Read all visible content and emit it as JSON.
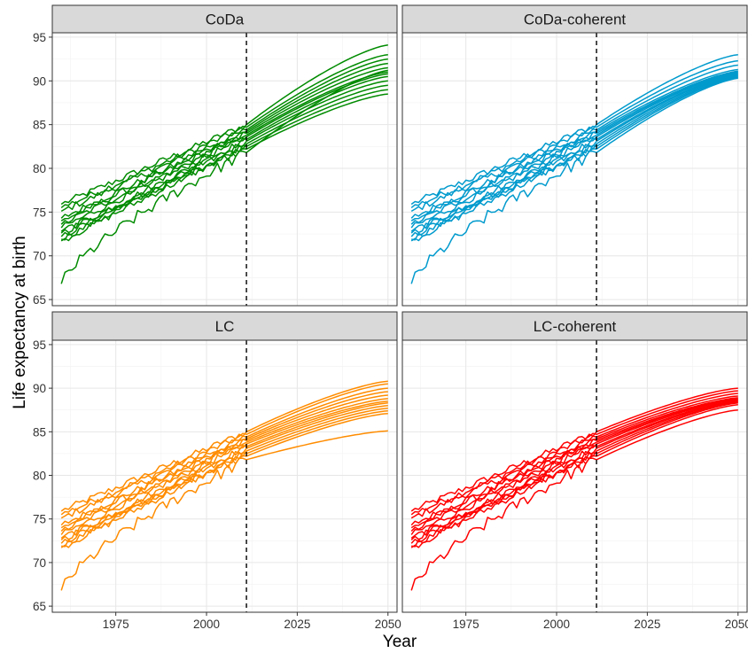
{
  "chart_data": {
    "type": "line",
    "xlabel": "Year",
    "ylabel": "Life expectancy at birth",
    "xlim": [
      1957.5,
      2052.5
    ],
    "ylim": [
      64.3,
      95.5
    ],
    "x_ticks": [
      1975,
      2000,
      2025,
      2050
    ],
    "y_ticks": [
      65,
      70,
      75,
      80,
      85,
      90,
      95
    ],
    "forecast_origin_year": 2011,
    "grid": true,
    "panels": [
      {
        "name": "CoDa",
        "color": "#008B00",
        "series_end_2011": [
          85.0,
          84.7,
          84.4,
          84.2,
          84.0,
          83.8,
          83.6,
          83.3,
          83.1,
          82.8,
          82.5,
          82.2,
          81.8
        ],
        "series_end_2050": [
          94.1,
          93.0,
          92.5,
          92.0,
          91.5,
          91.0,
          90.8,
          90.5,
          90.0,
          89.5,
          89.0,
          88.5,
          91.2
        ]
      },
      {
        "name": "CoDa-coherent",
        "color": "#009ACD",
        "series_end_2011": [
          85.0,
          84.7,
          84.4,
          84.2,
          84.0,
          83.8,
          83.6,
          83.3,
          83.1,
          82.8,
          82.5,
          82.2,
          81.8
        ],
        "series_end_2050": [
          93.0,
          92.3,
          91.8,
          91.3,
          91.1,
          91.0,
          90.9,
          90.8,
          90.7,
          90.6,
          90.5,
          90.4,
          90.3
        ]
      },
      {
        "name": "LC",
        "color": "#FF8C00",
        "series_end_2011": [
          85.0,
          84.7,
          84.4,
          84.2,
          84.0,
          83.8,
          83.6,
          83.3,
          83.1,
          82.8,
          82.5,
          82.2,
          81.8
        ],
        "series_end_2050": [
          90.8,
          90.5,
          90.0,
          89.6,
          89.2,
          88.8,
          88.5,
          88.3,
          88.0,
          87.7,
          87.4,
          87.1,
          85.1
        ]
      },
      {
        "name": "LC-coherent",
        "color": "#FF0000",
        "series_end_2011": [
          85.0,
          84.7,
          84.4,
          84.2,
          84.0,
          83.8,
          83.6,
          83.3,
          83.1,
          82.8,
          82.5,
          82.2,
          81.8
        ],
        "series_end_2050": [
          90.0,
          89.7,
          89.4,
          89.1,
          88.9,
          88.8,
          88.7,
          88.6,
          88.5,
          88.4,
          88.3,
          88.1,
          87.5
        ]
      }
    ]
  }
}
